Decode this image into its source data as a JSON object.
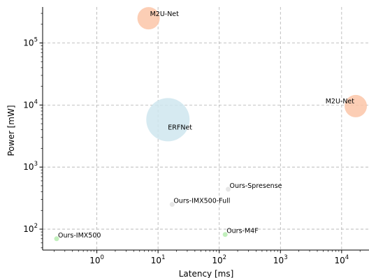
{
  "chart_data": {
    "type": "scatter",
    "xlabel": "Latency [ms]",
    "ylabel": "Power [mW]",
    "xscale": "log",
    "yscale": "log",
    "xlim": [
      0.13,
      28000
    ],
    "ylim": [
      46,
      380000
    ],
    "grid": true,
    "x_ticks": [
      {
        "base": "10",
        "exp": "0",
        "value": 1
      },
      {
        "base": "10",
        "exp": "1",
        "value": 10
      },
      {
        "base": "10",
        "exp": "2",
        "value": 100
      },
      {
        "base": "10",
        "exp": "3",
        "value": 1000
      },
      {
        "base": "10",
        "exp": "4",
        "value": 10000
      }
    ],
    "y_ticks": [
      {
        "base": "10",
        "exp": "2",
        "value": 100
      },
      {
        "base": "10",
        "exp": "3",
        "value": 1000
      },
      {
        "base": "10",
        "exp": "4",
        "value": 10000
      },
      {
        "base": "10",
        "exp": "5",
        "value": 100000
      }
    ],
    "points": [
      {
        "label": "M2U-Net",
        "x": 7.0,
        "y": 250000,
        "color": "#fcc5a8",
        "size": 16
      },
      {
        "label": "M2U-Net",
        "x": 17000,
        "y": 9600,
        "color": "#fcc5a8",
        "size": 16
      },
      {
        "label": "ERFNet",
        "x": 14.5,
        "y": 5800,
        "color": "#cfe6ef",
        "size": 31
      },
      {
        "label": "Ours-Spresense",
        "x": 140,
        "y": 440,
        "color": "#e2e2e2",
        "size": 3.5
      },
      {
        "label": "Ours-IMX500-Full",
        "x": 17,
        "y": 250,
        "color": "#e2e2e2",
        "size": 3.5
      },
      {
        "label": "Ours-M4F",
        "x": 125,
        "y": 82,
        "color": "#b6ecb0",
        "size": 3.5
      },
      {
        "label": "Ours-IMX500",
        "x": 0.22,
        "y": 70,
        "color": "#b6ecb0",
        "size": 3.5
      }
    ]
  }
}
